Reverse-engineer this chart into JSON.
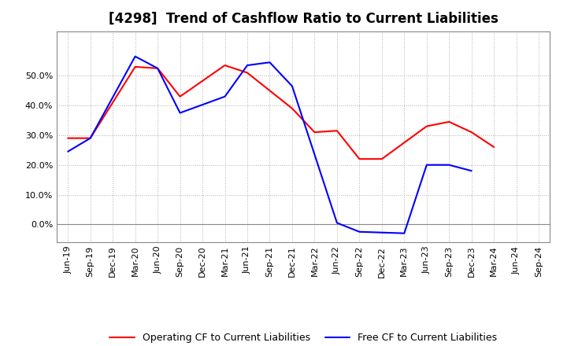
{
  "title": "[4298]  Trend of Cashflow Ratio to Current Liabilities",
  "x_labels": [
    "Jun-19",
    "Sep-19",
    "Dec-19",
    "Mar-20",
    "Jun-20",
    "Sep-20",
    "Dec-20",
    "Mar-21",
    "Jun-21",
    "Sep-21",
    "Dec-21",
    "Mar-22",
    "Jun-22",
    "Sep-22",
    "Dec-22",
    "Mar-23",
    "Jun-23",
    "Sep-23",
    "Dec-23",
    "Mar-24",
    "Jun-24",
    "Sep-24"
  ],
  "operating_cf_pts": [
    0.29,
    0.29,
    0.53,
    0.525,
    0.43,
    0.535,
    0.51,
    0.39,
    0.31,
    0.315,
    0.22,
    0.22,
    0.33,
    0.345,
    0.31,
    0.26
  ],
  "operating_cf_x": [
    0,
    1,
    3,
    4,
    5,
    7,
    8,
    10,
    11,
    12,
    13,
    14,
    16,
    17,
    18,
    19
  ],
  "free_cf_pts": [
    0.245,
    0.29,
    0.565,
    0.525,
    0.375,
    0.43,
    0.535,
    0.545,
    0.465,
    0.005,
    -0.025,
    -0.03,
    0.2,
    0.2,
    0.18
  ],
  "free_cf_x": [
    0,
    1,
    3,
    4,
    5,
    7,
    8,
    9,
    10,
    12,
    13,
    15,
    16,
    17,
    18
  ],
  "ylim": [
    -0.06,
    0.65
  ],
  "yticks": [
    0.0,
    0.1,
    0.2,
    0.3,
    0.4,
    0.5
  ],
  "operating_color": "#ff0000",
  "free_color": "#0000ff",
  "background_color": "#ffffff",
  "grid_color": "#b0b0b0",
  "title_fontsize": 12,
  "legend_fontsize": 9,
  "tick_fontsize": 8
}
